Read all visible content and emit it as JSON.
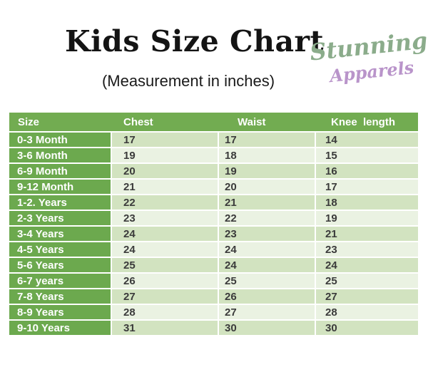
{
  "header": {
    "title": "Kids Size Chart",
    "subtitle": "(Measurement in inches)",
    "brand": {
      "line1": "Stunning",
      "line2": "Apparels"
    }
  },
  "table": {
    "columns": [
      "Size",
      "Chest",
      "Waist",
      "Knee  length"
    ],
    "colors": {
      "header_bg": "#72ac51",
      "label_bg": "#6ca94e",
      "stripe_dark": "#d2e3c0",
      "stripe_light": "#eaf2e2",
      "header_text": "#ffffff",
      "value_text": "#3b3b3b",
      "title_text": "#141414",
      "brand_green": "#8bac8b",
      "brand_purple": "#b994ca"
    }
  },
  "chart_data": {
    "type": "table",
    "title": "Kids Size Chart",
    "subtitle": "(Measurement in inches)",
    "units": "inches",
    "columns": [
      "Size",
      "Chest",
      "Waist",
      "Knee length"
    ],
    "rows": [
      [
        "0-3 Month",
        17,
        17,
        14
      ],
      [
        "3-6 Month",
        19,
        18,
        15
      ],
      [
        "6-9 Month",
        20,
        19,
        16
      ],
      [
        "9-12 Month",
        21,
        20,
        17
      ],
      [
        "1-2. Years",
        22,
        21,
        18
      ],
      [
        "2-3 Years",
        23,
        22,
        19
      ],
      [
        "3-4 Years",
        24,
        23,
        21
      ],
      [
        "4-5 Years",
        24,
        24,
        23
      ],
      [
        "5-6 Years",
        25,
        24,
        24
      ],
      [
        "6-7 years",
        26,
        25,
        25
      ],
      [
        "7-8 Years",
        27,
        26,
        27
      ],
      [
        "8-9 Years",
        28,
        27,
        28
      ],
      [
        "9-10 Years",
        31,
        30,
        30
      ]
    ]
  }
}
